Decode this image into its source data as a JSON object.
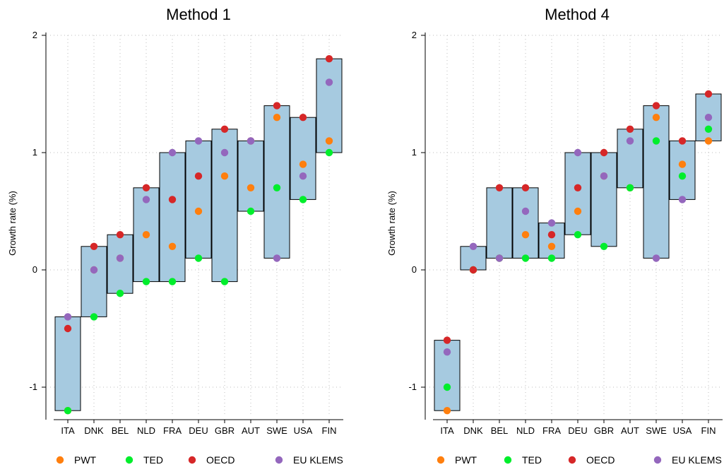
{
  "chart_data": [
    {
      "type": "box-range-dot",
      "title": "Method 1",
      "ylabel": "Growth rate (%)",
      "ylim": [
        -1.25,
        2.0
      ],
      "yticks": [
        -1,
        0,
        1,
        2
      ],
      "grid": true,
      "categories": [
        "ITA",
        "DNK",
        "BEL",
        "NLD",
        "FRA",
        "DEU",
        "GBR",
        "AUT",
        "SWE",
        "USA",
        "FIN"
      ],
      "series": [
        {
          "name": "PWT",
          "values": [
            -1.2,
            0.0,
            0.1,
            0.3,
            0.2,
            0.5,
            0.8,
            0.7,
            1.3,
            0.9,
            1.1
          ]
        },
        {
          "name": "TED",
          "values": [
            -1.2,
            -0.4,
            -0.2,
            -0.1,
            -0.1,
            0.1,
            -0.1,
            0.5,
            0.7,
            0.6,
            1.0
          ]
        },
        {
          "name": "OECD",
          "values": [
            -0.5,
            0.2,
            0.3,
            0.7,
            0.6,
            0.8,
            1.2,
            1.1,
            1.4,
            1.3,
            1.8
          ]
        },
        {
          "name": "EU KLEMS",
          "values": [
            -0.4,
            0.0,
            0.1,
            0.6,
            1.0,
            1.1,
            1.0,
            1.1,
            0.1,
            0.8,
            1.6
          ]
        }
      ]
    },
    {
      "type": "box-range-dot",
      "title": "Method 4",
      "ylabel": "Growth rate (%)",
      "ylim": [
        -1.25,
        2.0
      ],
      "yticks": [
        -1,
        0,
        1,
        2
      ],
      "grid": true,
      "categories": [
        "ITA",
        "DNK",
        "BEL",
        "NLD",
        "FRA",
        "DEU",
        "GBR",
        "AUT",
        "SWE",
        "USA",
        "FIN"
      ],
      "series": [
        {
          "name": "PWT",
          "values": [
            -1.2,
            0.0,
            0.1,
            0.3,
            0.2,
            0.5,
            0.8,
            0.7,
            1.3,
            0.9,
            1.1
          ]
        },
        {
          "name": "TED",
          "values": [
            -1.0,
            0.0,
            0.1,
            0.1,
            0.1,
            0.3,
            0.2,
            0.7,
            1.1,
            0.8,
            1.2
          ]
        },
        {
          "name": "OECD",
          "values": [
            -0.6,
            0.0,
            0.7,
            0.7,
            0.3,
            0.7,
            1.0,
            1.2,
            1.4,
            1.1,
            1.5
          ]
        },
        {
          "name": "EU KLEMS",
          "values": [
            -0.7,
            0.2,
            0.1,
            0.5,
            0.4,
            1.0,
            0.8,
            1.1,
            0.1,
            0.6,
            1.3
          ]
        }
      ]
    }
  ],
  "legend": [
    {
      "name": "PWT",
      "color": "#ff7f0e"
    },
    {
      "name": "TED",
      "color": "#00ee2c"
    },
    {
      "name": "OECD",
      "color": "#d62728"
    },
    {
      "name": "EU KLEMS",
      "color": "#9467bd"
    }
  ],
  "colors": {
    "box_fill": "#a6cae0",
    "box_stroke": "#000000",
    "grid": "#bdbdbd"
  }
}
